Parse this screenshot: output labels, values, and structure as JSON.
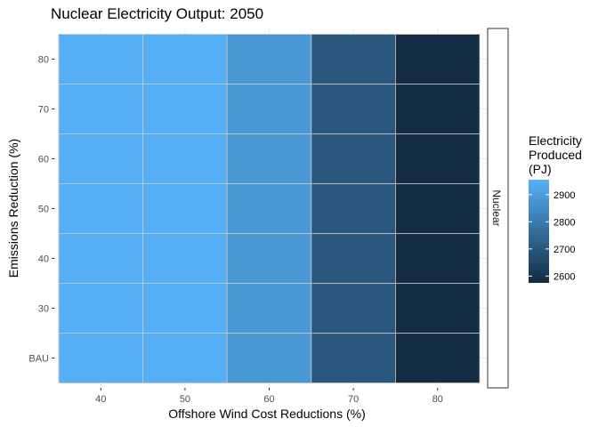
{
  "chart_data": {
    "type": "heatmap",
    "title": "Nuclear Electricity Output: 2050",
    "xlabel": "Offshore Wind Cost Reductions (%)",
    "ylabel": "Emissions Reduction (%)",
    "x_categories": [
      "40",
      "50",
      "60",
      "70",
      "80"
    ],
    "y_categories": [
      "BAU",
      "30",
      "40",
      "50",
      "60",
      "70",
      "80"
    ],
    "values": [
      [
        2950,
        2950,
        2880,
        2700,
        2580
      ],
      [
        2950,
        2950,
        2880,
        2700,
        2580
      ],
      [
        2950,
        2950,
        2880,
        2700,
        2580
      ],
      [
        2950,
        2950,
        2880,
        2700,
        2580
      ],
      [
        2950,
        2950,
        2880,
        2700,
        2580
      ],
      [
        2950,
        2950,
        2880,
        2700,
        2580
      ],
      [
        2950,
        2950,
        2880,
        2700,
        2580
      ]
    ],
    "facet_label": "Nuclear",
    "legend": {
      "title_lines": [
        "Electricity",
        "Produced",
        "(PJ)"
      ],
      "ticks": [
        2600,
        2700,
        2800,
        2900
      ],
      "range": [
        2575,
        2955
      ],
      "low_color": "#132B43",
      "high_color": "#56B1F7",
      "placement": "right"
    },
    "grid": true
  }
}
